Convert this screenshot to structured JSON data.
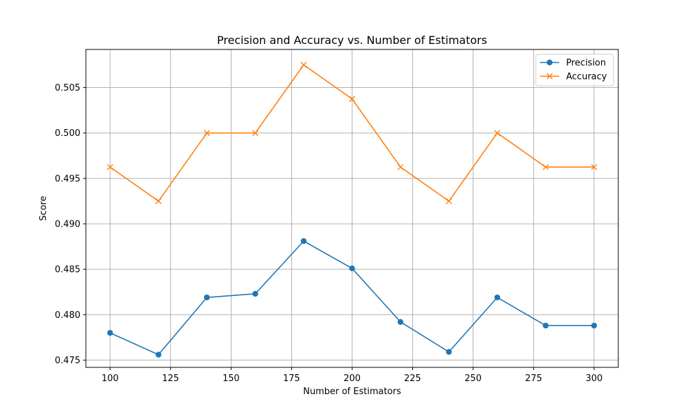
{
  "chart_data": {
    "type": "line",
    "title": "Precision and Accuracy vs. Number of Estimators",
    "xlabel": "Number of Estimators",
    "ylabel": "Score",
    "x": [
      100,
      120,
      140,
      160,
      180,
      200,
      220,
      240,
      260,
      280,
      300
    ],
    "xlim": [
      90,
      310
    ],
    "ylim": [
      0.4742,
      0.5092
    ],
    "xticks": [
      100,
      125,
      150,
      175,
      200,
      225,
      250,
      275,
      300
    ],
    "yticks": [
      0.475,
      0.48,
      0.485,
      0.49,
      0.495,
      0.5,
      0.505
    ],
    "grid": true,
    "legend_position": "top-right",
    "series": [
      {
        "name": "Precision",
        "color": "#1f77b4",
        "marker": "circle",
        "values": [
          0.478,
          0.4756,
          0.4819,
          0.4823,
          0.4881,
          0.4851,
          0.4792,
          0.4759,
          0.4819,
          0.4788,
          0.4788
        ]
      },
      {
        "name": "Accuracy",
        "color": "#ff7f0e",
        "marker": "x",
        "values": [
          0.49625,
          0.4925,
          0.5,
          0.5,
          0.5075,
          0.50375,
          0.49625,
          0.4925,
          0.5,
          0.49625,
          0.49625
        ]
      }
    ]
  }
}
